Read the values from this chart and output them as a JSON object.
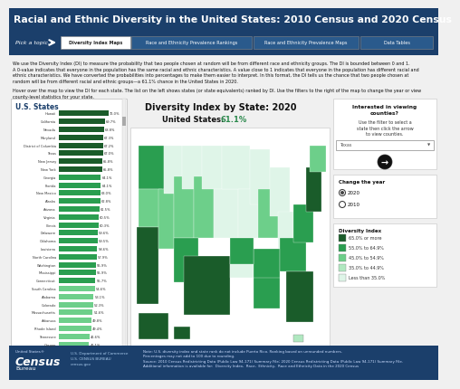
{
  "title": "Racial and Ethnic Diversity in the United States: 2010 Census and 2020 Census",
  "header_bg": "#1b3f6b",
  "header_text_color": "#ffffff",
  "nav_buttons": [
    "Diversity Index Maps",
    "Race and Ethnicity Prevalence Rankings",
    "Race and Ethnicity Prevalence Maps",
    "Data Tables"
  ],
  "nav_active_bg": "#ffffff",
  "nav_active_text": "#222222",
  "nav_inactive_bg": "#2a5a8c",
  "nav_inactive_text": "#ffffff",
  "body_bg": "#f0f0f0",
  "map_title": "Diversity Index by State: 2020",
  "map_subtitle_black": "United States: ",
  "map_subtitle_green": "61.1%",
  "map_subtitle_color": "#2d8a4e",
  "states_list_title": "U.S. States",
  "states": [
    {
      "name": "Hawaii",
      "value": 76.0
    },
    {
      "name": "California",
      "value": 69.7
    },
    {
      "name": "Nevada",
      "value": 68.8
    },
    {
      "name": "Maryland",
      "value": 67.3
    },
    {
      "name": "District of Columbia",
      "value": 67.2
    },
    {
      "name": "Texas",
      "value": 67.0
    },
    {
      "name": "New Jersey",
      "value": 65.8
    },
    {
      "name": "New York",
      "value": 65.8
    },
    {
      "name": "Georgia",
      "value": 64.1
    },
    {
      "name": "Florida",
      "value": 64.1
    },
    {
      "name": "New Mexico",
      "value": 63.0
    },
    {
      "name": "Alaska",
      "value": 62.8
    },
    {
      "name": "Arizona",
      "value": 61.5
    },
    {
      "name": "Virginia",
      "value": 60.5
    },
    {
      "name": "Illinois",
      "value": 60.3
    },
    {
      "name": "Delaware",
      "value": 59.6
    },
    {
      "name": "Oklahoma",
      "value": 59.5
    },
    {
      "name": "Louisiana",
      "value": 58.6
    },
    {
      "name": "North Carolina",
      "value": 57.9
    },
    {
      "name": "Washington",
      "value": 55.9
    },
    {
      "name": "Mississippi",
      "value": 55.9
    },
    {
      "name": "Connecticut",
      "value": 55.7
    },
    {
      "name": "South Carolina",
      "value": 54.6
    },
    {
      "name": "Alabama",
      "value": 53.1
    },
    {
      "name": "Colorado",
      "value": 52.3
    },
    {
      "name": "Massachusetts",
      "value": 51.6
    },
    {
      "name": "Arkansas",
      "value": 49.8
    },
    {
      "name": "Rhode Island",
      "value": 49.4
    },
    {
      "name": "Tennessee",
      "value": 46.6
    },
    {
      "name": "Oregon",
      "value": 46.1
    }
  ],
  "legend_colors": [
    "#1a5c2a",
    "#2a9e50",
    "#6dcf8a",
    "#b0e8c0",
    "#dff5e8"
  ],
  "legend_labels": [
    "65.0% or more",
    "55.0% to 64.9%",
    "45.0% to 54.9%",
    "35.0% to 44.9%",
    "Less than 35.0%"
  ],
  "footer_bg": "#1b3f6b",
  "desc_text1": "We use the Diversity Index (DI) to measure the probability that two people chosen at random will be from different race and ethnicity groups. The DI is bounded between 0 and 1.",
  "desc_text2": "A 0-value indicates that everyone in the population has the same racial and ethnic characteristics. A value close to 1 indicates that everyone in the population has different racial and",
  "desc_text3": "ethnic characteristics. We have converted the probabilities into percentages to make them easier to interpret. In this format, the DI tells us the chance that two people chosen at",
  "desc_text4": "random will be from different racial and ethnic groups—a 61.1% chance in the United States in 2020.",
  "desc_text5": "Hover over the map to view the DI for each state. The list on the left shows states (or state equivalents) ranked by DI. Use the filters to the right of the map to change the year or view",
  "desc_text6": "county-level statistics for your state.",
  "note_text": "Note: U.S. diversity index and state rank do not include Puerto Rico. Ranking based on unrounded numbers.",
  "note_text2": "Percentages may not add to 100 due to rounding.",
  "note_text3": "Source: 2010 Census Redistricting Data (Public Law 94-171) Summary File; 2020 Census Redistricting Data (Public Law 94-171) Summary File.",
  "note_text4": "Additional information is available for:  Diversity Index,  Race,  Ethnicity,  Race and Ethnicity Data in the 2020 Census"
}
